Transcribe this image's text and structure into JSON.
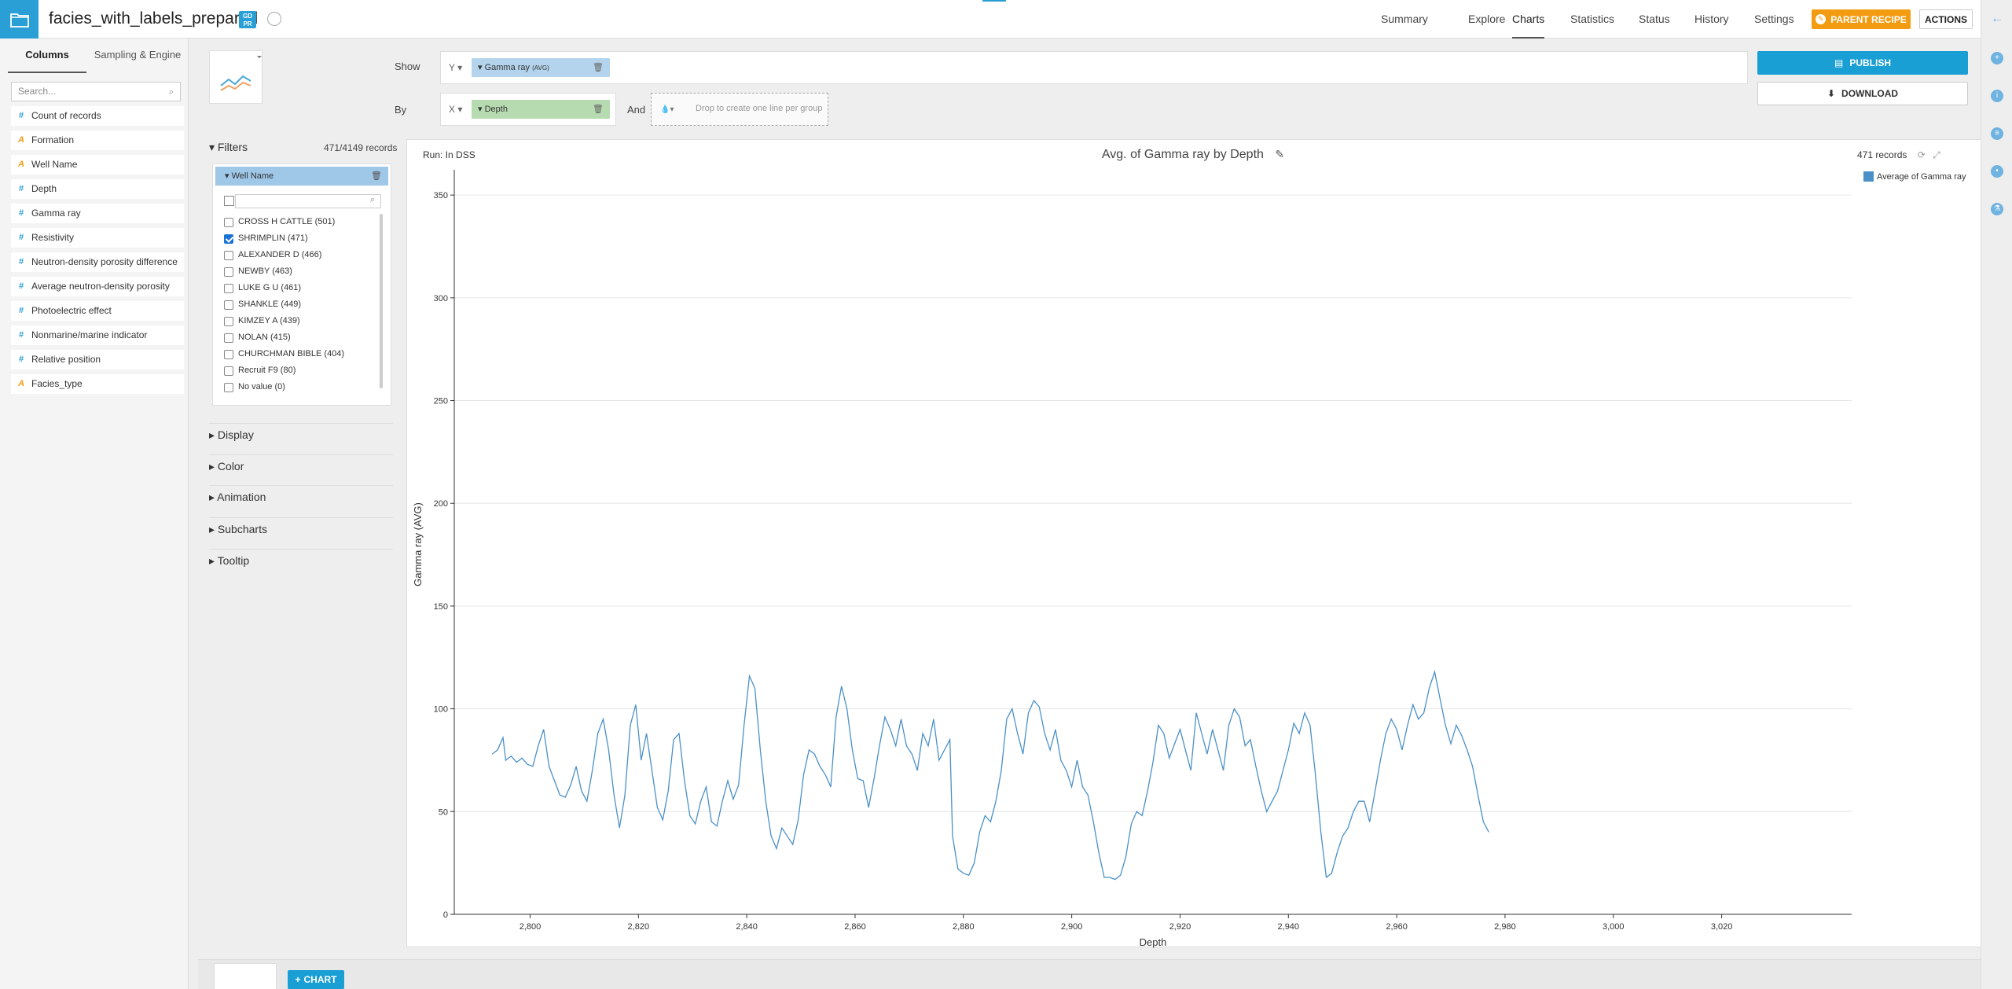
{
  "header": {
    "dataset_name": "facies_with_labels_prepared",
    "gdpr_badge_line1": "GD",
    "gdpr_badge_line2": "PR",
    "nav": [
      "Summary",
      "Explore",
      "Charts",
      "Statistics",
      "Status",
      "History",
      "Settings"
    ],
    "active_nav": "Charts",
    "parent_recipe_label": "PARENT RECIPE",
    "actions_label": "ACTIONS",
    "accent_color": "#2a9fd6",
    "parent_color": "#f39c12"
  },
  "left_panel": {
    "tabs": [
      "Columns",
      "Sampling & Engine"
    ],
    "search_placeholder": "Search...",
    "columns": [
      {
        "type": "#",
        "name": "Count of records"
      },
      {
        "type": "A",
        "name": "Formation"
      },
      {
        "type": "A",
        "name": "Well Name"
      },
      {
        "type": "#",
        "name": "Depth"
      },
      {
        "type": "#",
        "name": "Gamma ray"
      },
      {
        "type": "#",
        "name": "Resistivity"
      },
      {
        "type": "#",
        "name": "Neutron-density porosity difference"
      },
      {
        "type": "#",
        "name": "Average neutron-density porosity"
      },
      {
        "type": "#",
        "name": "Photoelectric effect"
      },
      {
        "type": "#",
        "name": "Nonmarine/marine indicator"
      },
      {
        "type": "#",
        "name": "Relative position"
      },
      {
        "type": "A",
        "name": "Facies_type"
      }
    ]
  },
  "config": {
    "show_label": "Show",
    "by_label": "By",
    "and_label": "And",
    "y_axis": "Y",
    "x_axis": "X",
    "y_measure": "Gamma ray",
    "y_measure_agg": "(AVG)",
    "x_dimension": "Depth",
    "group_placeholder": "Drop to create one line per group",
    "publish_label": "PUBLISH",
    "download_label": "DOWNLOAD"
  },
  "filters": {
    "title": "Filters",
    "records": "471/4149 records",
    "filter_name": "Well Name",
    "items": [
      {
        "label": "CROSS H CATTLE (501)",
        "checked": false
      },
      {
        "label": "SHRIMPLIN (471)",
        "checked": true
      },
      {
        "label": "ALEXANDER D (466)",
        "checked": false
      },
      {
        "label": "NEWBY (463)",
        "checked": false
      },
      {
        "label": "LUKE G U (461)",
        "checked": false
      },
      {
        "label": "SHANKLE (449)",
        "checked": false
      },
      {
        "label": "KIMZEY A (439)",
        "checked": false
      },
      {
        "label": "NOLAN (415)",
        "checked": false
      },
      {
        "label": "CHURCHMAN BIBLE (404)",
        "checked": false
      },
      {
        "label": "Recruit F9 (80)",
        "checked": false
      },
      {
        "label": "No value (0)",
        "checked": false
      }
    ]
  },
  "sections": [
    "Display",
    "Color",
    "Animation",
    "Subcharts",
    "Tooltip"
  ],
  "chart_panel": {
    "run_label": "Run: In DSS",
    "records_label": "471 records"
  },
  "bottom": {
    "chart_button": "CHART"
  },
  "chart_data": {
    "type": "line",
    "title": "Avg. of Gamma ray by Depth",
    "xlabel": "Depth",
    "ylabel": "Gamma ray (AVG)",
    "xlim": [
      2786,
      3044
    ],
    "ylim": [
      0,
      360
    ],
    "x_ticks": [
      2800,
      2820,
      2840,
      2860,
      2880,
      2900,
      2920,
      2940,
      2960,
      2980,
      3000,
      3020
    ],
    "x_tick_labels": [
      "2,800",
      "2,820",
      "2,840",
      "2,860",
      "2,880",
      "2,900",
      "2,920",
      "2,940",
      "2,960",
      "2,980",
      "3,000",
      "3,020"
    ],
    "y_ticks": [
      0,
      50,
      100,
      150,
      200,
      250,
      300,
      350
    ],
    "grid": "horizontal",
    "legend_position": "top-right",
    "series": [
      {
        "name": "Average of Gamma ray",
        "color": "#4a90c8",
        "points": [
          [
            2793,
            78
          ],
          [
            2794,
            80
          ],
          [
            2795,
            86
          ],
          [
            2795.5,
            75
          ],
          [
            2796.5,
            77
          ],
          [
            2797.5,
            74
          ],
          [
            2798.5,
            76
          ],
          [
            2799.5,
            73
          ],
          [
            2800.5,
            72
          ],
          [
            2801.5,
            82
          ],
          [
            2802.5,
            90
          ],
          [
            2803.5,
            72
          ],
          [
            2804.5,
            65
          ],
          [
            2805.5,
            58
          ],
          [
            2806.5,
            57
          ],
          [
            2807.5,
            63
          ],
          [
            2808.5,
            72
          ],
          [
            2809.5,
            60
          ],
          [
            2810.5,
            55
          ],
          [
            2811.5,
            70
          ],
          [
            2812.5,
            88
          ],
          [
            2813.5,
            95
          ],
          [
            2814.5,
            80
          ],
          [
            2815.5,
            58
          ],
          [
            2816.5,
            42
          ],
          [
            2817.5,
            58
          ],
          [
            2818.5,
            92
          ],
          [
            2819.5,
            102
          ],
          [
            2820.5,
            75
          ],
          [
            2821.5,
            88
          ],
          [
            2822.5,
            70
          ],
          [
            2823.5,
            52
          ],
          [
            2824.5,
            46
          ],
          [
            2825.5,
            60
          ],
          [
            2826.5,
            85
          ],
          [
            2827.5,
            88
          ],
          [
            2828.5,
            65
          ],
          [
            2829.5,
            48
          ],
          [
            2830.5,
            44
          ],
          [
            2831.5,
            55
          ],
          [
            2832.5,
            62
          ],
          [
            2833.5,
            45
          ],
          [
            2834.5,
            43
          ],
          [
            2835.5,
            55
          ],
          [
            2836.5,
            65
          ],
          [
            2837.5,
            56
          ],
          [
            2838.5,
            63
          ],
          [
            2839.5,
            92
          ],
          [
            2840.5,
            116
          ],
          [
            2841.5,
            110
          ],
          [
            2842.5,
            80
          ],
          [
            2843.5,
            55
          ],
          [
            2844.5,
            38
          ],
          [
            2845.5,
            32
          ],
          [
            2846.5,
            42
          ],
          [
            2847.5,
            38
          ],
          [
            2848.5,
            34
          ],
          [
            2849.5,
            46
          ],
          [
            2850.5,
            68
          ],
          [
            2851.5,
            80
          ],
          [
            2852.5,
            78
          ],
          [
            2853.5,
            72
          ],
          [
            2854.5,
            68
          ],
          [
            2855.5,
            62
          ],
          [
            2856.5,
            96
          ],
          [
            2857.5,
            111
          ],
          [
            2858.5,
            100
          ],
          [
            2859.5,
            80
          ],
          [
            2860.5,
            66
          ],
          [
            2861.5,
            65
          ],
          [
            2862.5,
            52
          ],
          [
            2863.5,
            66
          ],
          [
            2864.5,
            82
          ],
          [
            2865.5,
            96
          ],
          [
            2866.5,
            90
          ],
          [
            2867.5,
            82
          ],
          [
            2868.5,
            95
          ],
          [
            2869.5,
            82
          ],
          [
            2870.5,
            78
          ],
          [
            2871.5,
            70
          ],
          [
            2872.5,
            88
          ],
          [
            2873.5,
            82
          ],
          [
            2874.5,
            95
          ],
          [
            2875.5,
            75
          ],
          [
            2876.5,
            80
          ],
          [
            2877.5,
            85
          ],
          [
            2878,
            38
          ],
          [
            2879,
            22
          ],
          [
            2880,
            20
          ],
          [
            2881,
            19
          ],
          [
            2882,
            25
          ],
          [
            2883,
            40
          ],
          [
            2884,
            48
          ],
          [
            2885,
            45
          ],
          [
            2886,
            55
          ],
          [
            2887,
            70
          ],
          [
            2888,
            95
          ],
          [
            2889,
            100
          ],
          [
            2890,
            88
          ],
          [
            2891,
            78
          ],
          [
            2892,
            98
          ],
          [
            2893,
            104
          ],
          [
            2894,
            101
          ],
          [
            2895,
            88
          ],
          [
            2896,
            80
          ],
          [
            2897,
            90
          ],
          [
            2898,
            75
          ],
          [
            2899,
            70
          ],
          [
            2900,
            62
          ],
          [
            2901,
            75
          ],
          [
            2902,
            62
          ],
          [
            2903,
            58
          ],
          [
            2904,
            45
          ],
          [
            2905,
            30
          ],
          [
            2906,
            18
          ],
          [
            2907,
            18
          ],
          [
            2908,
            17
          ],
          [
            2909,
            19
          ],
          [
            2910,
            28
          ],
          [
            2911,
            44
          ],
          [
            2912,
            50
          ],
          [
            2913,
            48
          ],
          [
            2914,
            60
          ],
          [
            2915,
            74
          ],
          [
            2916,
            92
          ],
          [
            2917,
            88
          ],
          [
            2918,
            76
          ],
          [
            2919,
            83
          ],
          [
            2920,
            90
          ],
          [
            2921,
            80
          ],
          [
            2922,
            70
          ],
          [
            2923,
            98
          ],
          [
            2924,
            88
          ],
          [
            2925,
            78
          ],
          [
            2926,
            90
          ],
          [
            2927,
            80
          ],
          [
            2928,
            70
          ],
          [
            2929,
            92
          ],
          [
            2930,
            100
          ],
          [
            2931,
            96
          ],
          [
            2932,
            82
          ],
          [
            2933,
            85
          ],
          [
            2934,
            72
          ],
          [
            2935,
            60
          ],
          [
            2936,
            50
          ],
          [
            2937,
            55
          ],
          [
            2938,
            60
          ],
          [
            2939,
            70
          ],
          [
            2940,
            80
          ],
          [
            2941,
            93
          ],
          [
            2942,
            88
          ],
          [
            2943,
            98
          ],
          [
            2944,
            92
          ],
          [
            2945,
            68
          ],
          [
            2946,
            40
          ],
          [
            2947,
            18
          ],
          [
            2948,
            20
          ],
          [
            2949,
            30
          ],
          [
            2950,
            38
          ],
          [
            2951,
            42
          ],
          [
            2952,
            50
          ],
          [
            2953,
            55
          ],
          [
            2954,
            55
          ],
          [
            2955,
            45
          ],
          [
            2956,
            60
          ],
          [
            2957,
            75
          ],
          [
            2958,
            88
          ],
          [
            2959,
            95
          ],
          [
            2960,
            90
          ],
          [
            2961,
            80
          ],
          [
            2962,
            92
          ],
          [
            2963,
            102
          ],
          [
            2964,
            95
          ],
          [
            2965,
            98
          ],
          [
            2966,
            110
          ],
          [
            2967,
            118
          ],
          [
            2968,
            105
          ],
          [
            2969,
            92
          ],
          [
            2970,
            83
          ],
          [
            2971,
            92
          ],
          [
            2972,
            87
          ],
          [
            2973,
            80
          ],
          [
            2974,
            72
          ],
          [
            2975,
            58
          ],
          [
            2976,
            45
          ],
          [
            2977,
            40
          ]
        ]
      }
    ]
  }
}
